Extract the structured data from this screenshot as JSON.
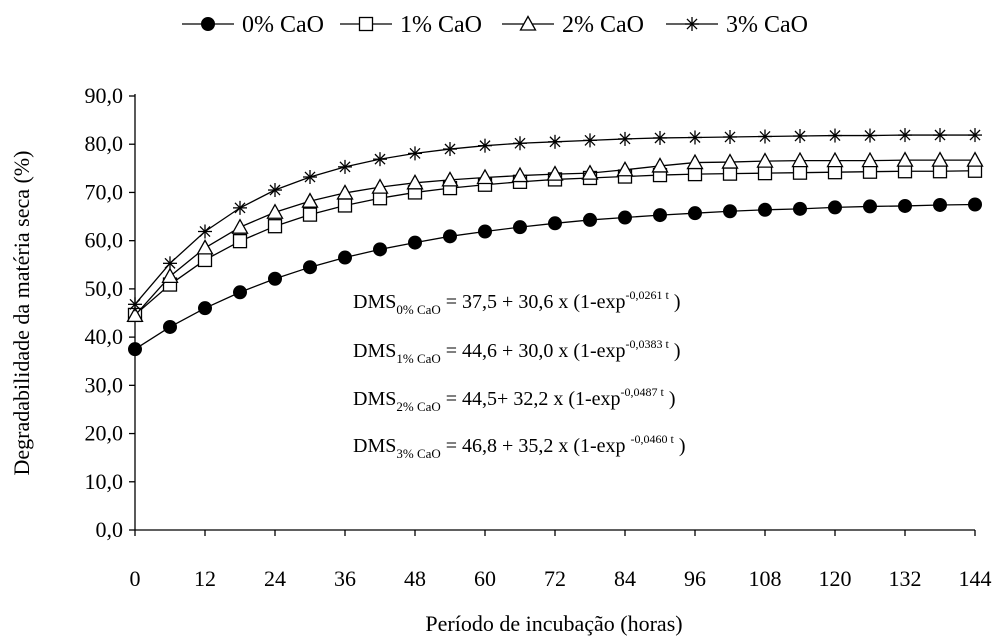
{
  "chart_data": {
    "type": "line",
    "title": "",
    "xlabel": "Período de incubação (horas)",
    "ylabel": "Degradabilidade da matéria seca (%)",
    "xlim": [
      0,
      144
    ],
    "ylim": [
      0,
      90
    ],
    "x_ticks": [
      "0",
      "12",
      "24",
      "36",
      "48",
      "60",
      "72",
      "84",
      "96",
      "108",
      "120",
      "132",
      "144"
    ],
    "y_ticks": [
      "0,0",
      "10,0",
      "20,0",
      "30,0",
      "40,0",
      "50,0",
      "60,0",
      "70,0",
      "80,0",
      "90,0"
    ],
    "grid": false,
    "legend_position": "top",
    "x": [
      0,
      6,
      12,
      18,
      24,
      30,
      36,
      42,
      48,
      54,
      60,
      66,
      72,
      78,
      84,
      90,
      96,
      102,
      108,
      114,
      120,
      126,
      132,
      138,
      144
    ],
    "series": [
      {
        "name": "0% CaO",
        "marker": "filled-circle",
        "values": [
          37.5,
          42.1,
          46.0,
          49.3,
          52.1,
          54.5,
          56.5,
          58.2,
          59.6,
          60.9,
          61.9,
          62.8,
          63.6,
          64.3,
          64.8,
          65.3,
          65.7,
          66.1,
          66.4,
          66.6,
          66.9,
          67.1,
          67.2,
          67.4,
          67.5
        ]
      },
      {
        "name": "1% CaO",
        "marker": "open-square",
        "values": [
          44.6,
          50.9,
          56.0,
          59.9,
          63.0,
          65.4,
          67.3,
          68.8,
          70.0,
          70.9,
          71.6,
          72.2,
          72.7,
          73.0,
          73.3,
          73.6,
          73.8,
          73.9,
          74.0,
          74.1,
          74.2,
          74.3,
          74.4,
          74.4,
          74.5
        ]
      },
      {
        "name": "2% CaO",
        "marker": "open-triangle",
        "values": [
          44.5,
          52.6,
          58.5,
          62.8,
          65.9,
          68.2,
          69.9,
          71.1,
          72.0,
          72.6,
          73.1,
          73.5,
          73.8,
          74.0,
          74.7,
          75.5,
          76.2,
          76.3,
          76.5,
          76.6,
          76.6,
          76.6,
          76.7,
          76.7,
          76.7
        ]
      },
      {
        "name": "3% CaO",
        "marker": "asterisk",
        "values": [
          46.8,
          55.3,
          61.9,
          66.8,
          70.5,
          73.2,
          75.3,
          76.9,
          78.1,
          79.0,
          79.7,
          80.2,
          80.5,
          80.8,
          81.1,
          81.3,
          81.4,
          81.5,
          81.6,
          81.7,
          81.8,
          81.8,
          81.9,
          81.9,
          81.9
        ]
      }
    ],
    "annotations": [
      {
        "label": "DMS",
        "sub": "0% CaO",
        "rest": " = 37,5 + 30,6 x (1-exp",
        "sup": "-0,0261 t",
        "close": " )"
      },
      {
        "label": "DMS",
        "sub": "1% CaO",
        "rest": " = 44,6 + 30,0 x (1-exp",
        "sup": "-0,0383 t",
        "close": " )"
      },
      {
        "label": "DMS",
        "sub": "2% CaO",
        "rest": " = 44,5+ 32,2 x (1-exp",
        "sup": "-0,0487 t",
        "close": " )"
      },
      {
        "label": "DMS",
        "sub": "3% CaO",
        "rest": " = 46,8 + 35,2 x (1-exp ",
        "sup": "-0,0460 t",
        "close": " )"
      }
    ]
  }
}
